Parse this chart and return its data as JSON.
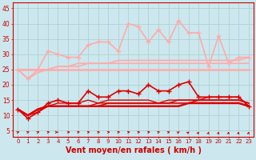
{
  "x": [
    0,
    1,
    2,
    3,
    4,
    5,
    6,
    7,
    8,
    9,
    10,
    11,
    12,
    13,
    14,
    15,
    16,
    17,
    18,
    19,
    20,
    21,
    22,
    23
  ],
  "background_color": "#cce8ee",
  "grid_color": "#aacccc",
  "xlabel": "Vent moyen/en rafales ( km/h )",
  "xlabel_color": "#cc0000",
  "xlabel_fontsize": 7,
  "yticks": [
    5,
    10,
    15,
    20,
    25,
    30,
    35,
    40,
    45
  ],
  "ylim": [
    3,
    47
  ],
  "xlim": [
    -0.5,
    23.5
  ],
  "series": [
    {
      "y": [
        25,
        25,
        25,
        25,
        25,
        25,
        25,
        25,
        25,
        25,
        25,
        25,
        25,
        25,
        25,
        25,
        25,
        25,
        25,
        25,
        25,
        25,
        25,
        25
      ],
      "color": "#ffaaaa",
      "lw": 1.8,
      "marker": null,
      "zorder": 2
    },
    {
      "y": [
        25,
        25,
        25,
        25,
        26,
        26,
        27,
        27,
        27,
        27,
        28,
        28,
        28,
        28,
        28,
        28,
        28,
        28,
        28,
        28,
        28,
        28,
        28,
        29
      ],
      "color": "#ffaaaa",
      "lw": 1.2,
      "marker": null,
      "zorder": 2
    },
    {
      "y": [
        25,
        22,
        24,
        25,
        26,
        26,
        26,
        27,
        27,
        27,
        27,
        27,
        27,
        27,
        27,
        27,
        27,
        27,
        27,
        27,
        27,
        27,
        27,
        27
      ],
      "color": "#ffaaaa",
      "lw": 1.2,
      "marker": null,
      "zorder": 2
    },
    {
      "y": [
        25,
        22,
        25,
        31,
        30,
        29,
        29,
        33,
        34,
        34,
        31,
        40,
        39,
        34,
        38,
        34,
        41,
        37,
        37,
        26,
        36,
        27,
        29,
        29
      ],
      "color": "#ffaaaa",
      "lw": 1.2,
      "marker": "+",
      "markersize": 4,
      "zorder": 3
    },
    {
      "y": [
        12,
        9,
        11,
        14,
        15,
        14,
        14,
        18,
        16,
        16,
        18,
        18,
        17,
        20,
        18,
        18,
        20,
        21,
        16,
        16,
        16,
        16,
        16,
        13
      ],
      "color": "#dd0000",
      "lw": 1.2,
      "marker": "+",
      "markersize": 4,
      "zorder": 4
    },
    {
      "y": [
        12,
        10,
        12,
        13,
        13,
        13,
        13,
        13,
        13,
        13,
        13,
        13,
        13,
        13,
        13,
        13,
        13,
        14,
        14,
        14,
        14,
        14,
        14,
        13
      ],
      "color": "#dd0000",
      "lw": 1.8,
      "marker": null,
      "zorder": 3
    },
    {
      "y": [
        12,
        10,
        12,
        13,
        13,
        13,
        13,
        13,
        13,
        14,
        14,
        14,
        14,
        14,
        14,
        14,
        14,
        14,
        15,
        15,
        15,
        15,
        15,
        14
      ],
      "color": "#dd0000",
      "lw": 1.2,
      "marker": null,
      "zorder": 3
    },
    {
      "y": [
        12,
        10,
        12,
        13,
        13,
        13,
        13,
        13,
        14,
        14,
        14,
        14,
        14,
        14,
        14,
        14,
        15,
        15,
        15,
        15,
        15,
        15,
        15,
        14
      ],
      "color": "#dd0000",
      "lw": 1.0,
      "marker": null,
      "zorder": 2
    },
    {
      "y": [
        12,
        10,
        11,
        13,
        14,
        14,
        14,
        15,
        14,
        15,
        15,
        15,
        15,
        15,
        14,
        15,
        15,
        15,
        15,
        16,
        16,
        16,
        16,
        13
      ],
      "color": "#dd0000",
      "lw": 1.0,
      "marker": null,
      "zorder": 2
    }
  ],
  "wind_arrow_angles": [
    45,
    45,
    45,
    60,
    90,
    75,
    60,
    60,
    60,
    60,
    60,
    60,
    60,
    60,
    50,
    45,
    30,
    20,
    10,
    5,
    5,
    5,
    5,
    5
  ]
}
